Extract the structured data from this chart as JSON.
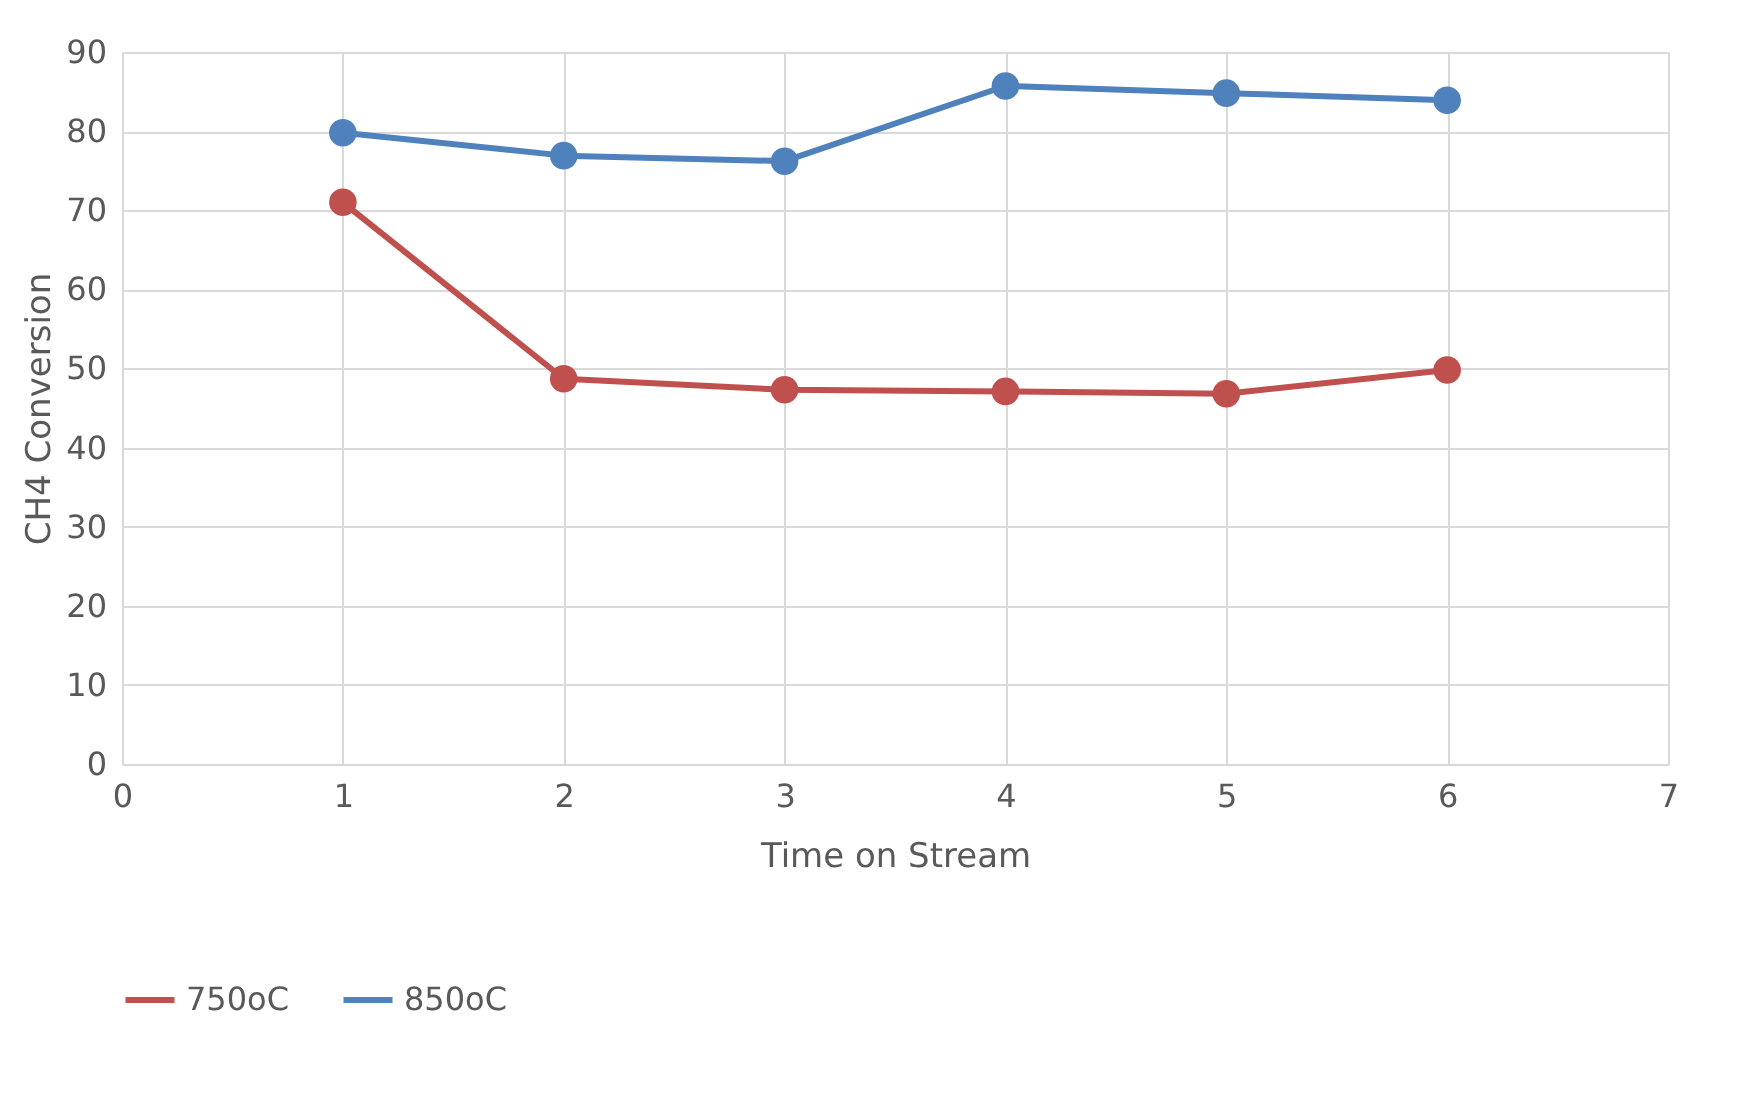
{
  "chart_data": {
    "type": "line",
    "xlabel": "Time on Stream",
    "ylabel": "CH4 Conversion",
    "x": [
      1,
      2,
      3,
      4,
      5,
      6
    ],
    "series": [
      {
        "name": "750oC",
        "color": "#c0504d",
        "values": [
          71.0,
          48.7,
          47.3,
          47.1,
          46.8,
          49.8
        ]
      },
      {
        "name": "850oC",
        "color": "#4f81bd",
        "values": [
          79.8,
          76.9,
          76.2,
          85.7,
          84.8,
          83.9
        ]
      }
    ],
    "xlim": [
      0,
      7
    ],
    "xticks": [
      0,
      1,
      2,
      3,
      4,
      5,
      6,
      7
    ],
    "ylim": [
      0,
      90
    ],
    "yticks": [
      0,
      10,
      20,
      30,
      40,
      50,
      60,
      70,
      80,
      90
    ],
    "grid": true,
    "legend": "bottom",
    "marker": "circle",
    "line_style": "solid"
  }
}
